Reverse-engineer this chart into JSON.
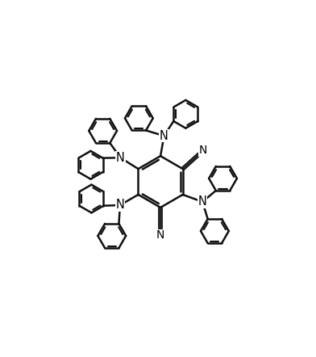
{
  "bg": "#ffffff",
  "lc": "#111111",
  "lw": 1.8,
  "lw_thin": 1.3,
  "r_central": 0.88,
  "r_phenyl": 0.48,
  "fig_w": 3.92,
  "fig_h": 4.42,
  "dpi": 100,
  "xlim": [
    -3.8,
    4.2
  ],
  "ylim": [
    -4.6,
    4.8
  ]
}
